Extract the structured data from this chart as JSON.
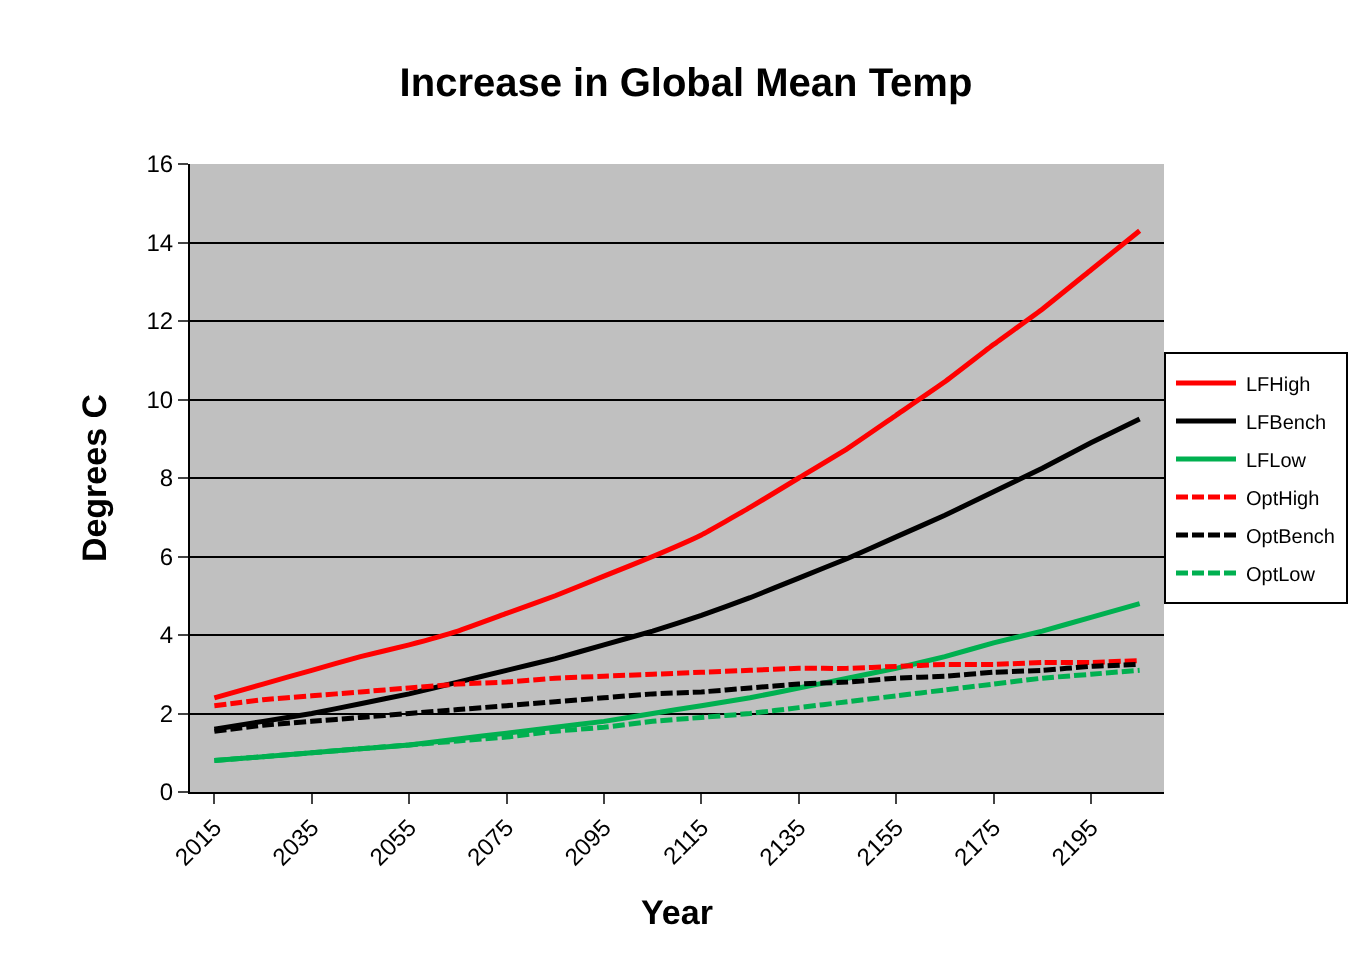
{
  "chart_data": {
    "type": "line",
    "title": "Increase in Global Mean Temp",
    "xlabel": "Year",
    "ylabel": "Degrees C",
    "x": [
      2015,
      2025,
      2035,
      2045,
      2055,
      2065,
      2075,
      2085,
      2095,
      2105,
      2115,
      2125,
      2135,
      2145,
      2155,
      2165,
      2175,
      2185,
      2195,
      2205
    ],
    "xlim": [
      2010,
      2210
    ],
    "xticks": [
      2015,
      2035,
      2055,
      2075,
      2095,
      2115,
      2135,
      2155,
      2175,
      2195
    ],
    "ylim": [
      0,
      16
    ],
    "yticks": [
      0,
      2,
      4,
      6,
      8,
      10,
      12,
      14,
      16
    ],
    "grid": "y",
    "legend": "right",
    "marker": "none",
    "series": [
      {
        "name": "LFHigh",
        "color": "#ff0000",
        "line_style": "solid",
        "values": [
          2.4,
          2.75,
          3.1,
          3.45,
          3.75,
          4.1,
          4.55,
          5.0,
          5.5,
          6.0,
          6.55,
          7.25,
          8.0,
          8.75,
          9.6,
          10.45,
          11.4,
          12.3,
          13.3,
          14.3
        ]
      },
      {
        "name": "LFBench",
        "color": "#000000",
        "line_style": "solid",
        "values": [
          1.6,
          1.8,
          2.0,
          2.25,
          2.5,
          2.8,
          3.1,
          3.4,
          3.75,
          4.1,
          4.5,
          4.95,
          5.45,
          5.95,
          6.5,
          7.05,
          7.65,
          8.25,
          8.9,
          9.5
        ]
      },
      {
        "name": "LFLow",
        "color": "#00b050",
        "line_style": "solid",
        "values": [
          0.8,
          0.9,
          1.0,
          1.1,
          1.2,
          1.35,
          1.5,
          1.65,
          1.8,
          2.0,
          2.2,
          2.4,
          2.65,
          2.9,
          3.15,
          3.45,
          3.8,
          4.1,
          4.45,
          4.8
        ]
      },
      {
        "name": "OptHigh",
        "color": "#ff0000",
        "line_style": "dashed",
        "values": [
          2.2,
          2.35,
          2.45,
          2.55,
          2.65,
          2.75,
          2.8,
          2.9,
          2.95,
          3.0,
          3.05,
          3.1,
          3.15,
          3.15,
          3.2,
          3.25,
          3.25,
          3.3,
          3.3,
          3.35
        ]
      },
      {
        "name": "OptBench",
        "color": "#000000",
        "line_style": "dashed",
        "values": [
          1.55,
          1.7,
          1.8,
          1.9,
          2.0,
          2.1,
          2.2,
          2.3,
          2.4,
          2.5,
          2.55,
          2.65,
          2.75,
          2.8,
          2.9,
          2.95,
          3.05,
          3.1,
          3.2,
          3.25
        ]
      },
      {
        "name": "OptLow",
        "color": "#00b050",
        "line_style": "dashed",
        "values": [
          0.8,
          0.9,
          1.0,
          1.1,
          1.2,
          1.3,
          1.4,
          1.55,
          1.65,
          1.8,
          1.9,
          2.0,
          2.15,
          2.3,
          2.45,
          2.6,
          2.75,
          2.9,
          3.0,
          3.1
        ]
      }
    ]
  }
}
